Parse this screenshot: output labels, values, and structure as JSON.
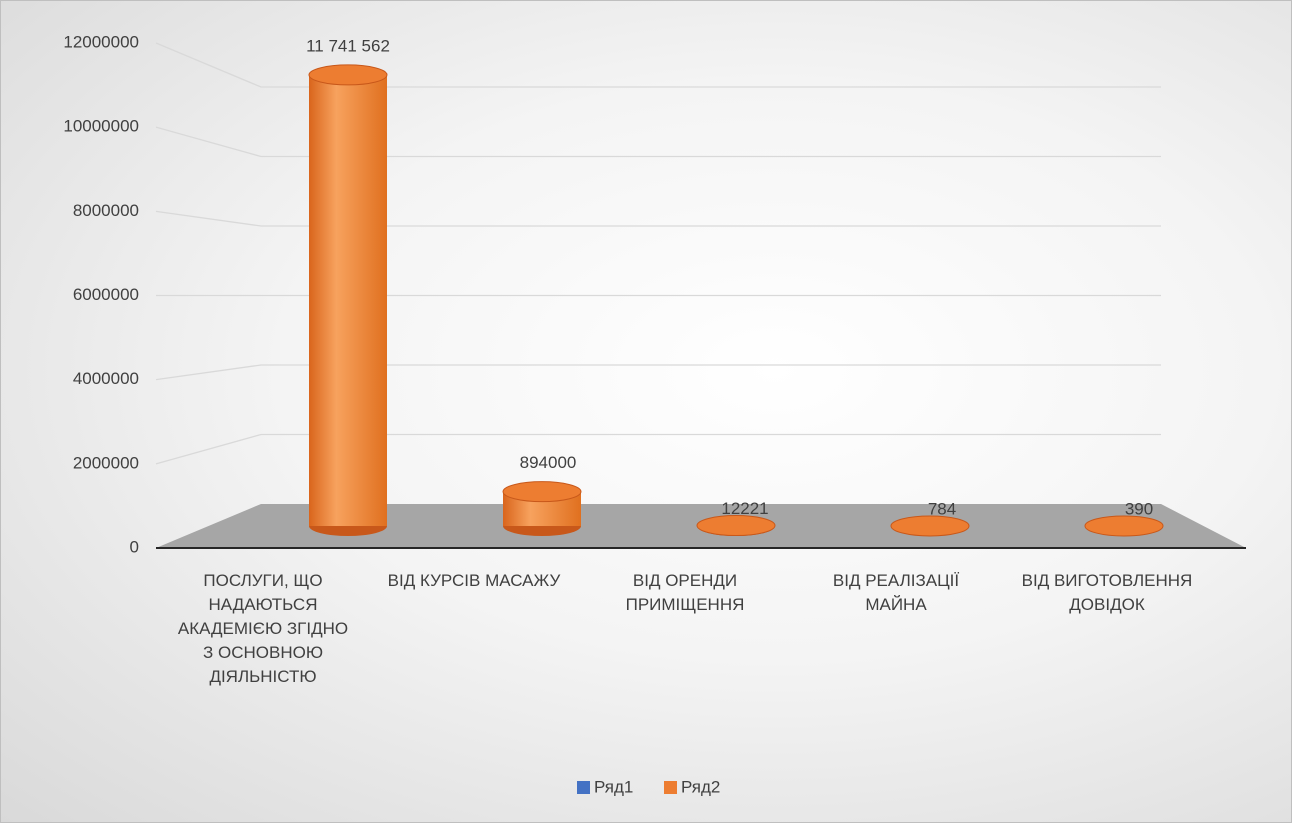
{
  "chart_data": {
    "type": "bar3d",
    "categories": [
      "ПОСЛУГИ, ЩО НАДАЮТЬСЯ АКАДЕМІЄЮ ЗГІДНО З ОСНОВНОЮ ДІЯЛЬНІСТЮ",
      "ВІД КУРСІВ МАСАЖУ",
      "ВІД ОРЕНДИ ПРИМІЩЕННЯ",
      "ВІД РЕАЛІЗАЦІЇ МАЙНА",
      "ВІД ВИГОТОВЛЕННЯ ДОВІДОК"
    ],
    "series": [
      {
        "name": "Ряд1",
        "color": "#4472c4",
        "values": [
          null,
          null,
          null,
          null,
          null
        ]
      },
      {
        "name": "Ряд2",
        "color": "#ed7d31",
        "values": [
          11741562,
          894000,
          12221,
          784,
          390
        ],
        "value_labels": [
          "11 741 562",
          "894000",
          "12221",
          "784",
          "390"
        ]
      }
    ],
    "ylim": [
      0,
      12000000
    ],
    "yticks": [
      0,
      2000000,
      4000000,
      6000000,
      8000000,
      10000000,
      12000000
    ],
    "grid": true,
    "legend": "bottom"
  }
}
